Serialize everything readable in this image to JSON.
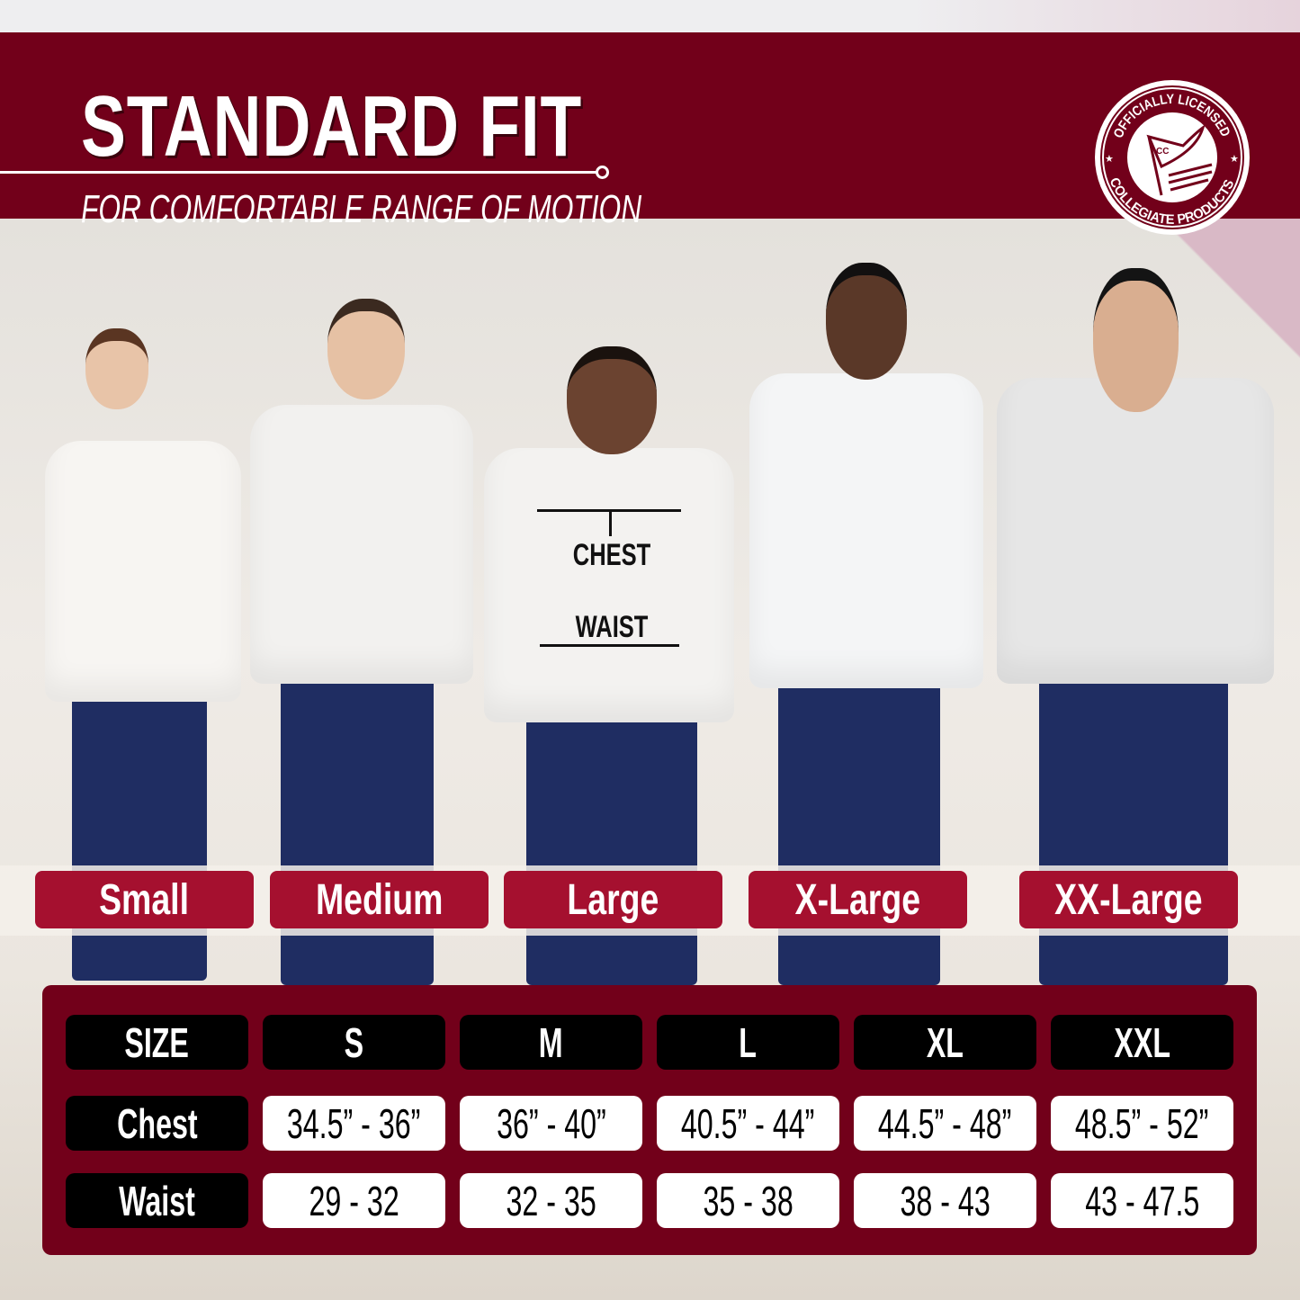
{
  "header": {
    "title": "STANDARD FIT",
    "subtitle": "FOR COMFORTABLE RANGE OF MOTION",
    "logo_text": "OFFICIALLY LICENSED COLLEGIATE PRODUCTS CC"
  },
  "measure_labels": {
    "chest": "CHEST",
    "waist": "WAIST"
  },
  "size_labels": [
    "Small",
    "Medium",
    "Large",
    "X-Large",
    "XX-Large"
  ],
  "table": {
    "headers": [
      "SIZE",
      "S",
      "M",
      "L",
      "XL",
      "XXL"
    ],
    "rows": [
      {
        "label": "Chest",
        "values": [
          "34.5” - 36”",
          "36” - 40”",
          "40.5” - 44”",
          "44.5” - 48”",
          "48.5” - 52”"
        ]
      },
      {
        "label": "Waist",
        "values": [
          "29 - 32",
          "32 - 35",
          "35 - 38",
          "38 - 43",
          "43 - 47.5"
        ]
      }
    ]
  },
  "colors": {
    "brand": "#72001a",
    "pill": "#a5102f",
    "header_cell": "#000000",
    "value_cell": "#ffffff"
  }
}
